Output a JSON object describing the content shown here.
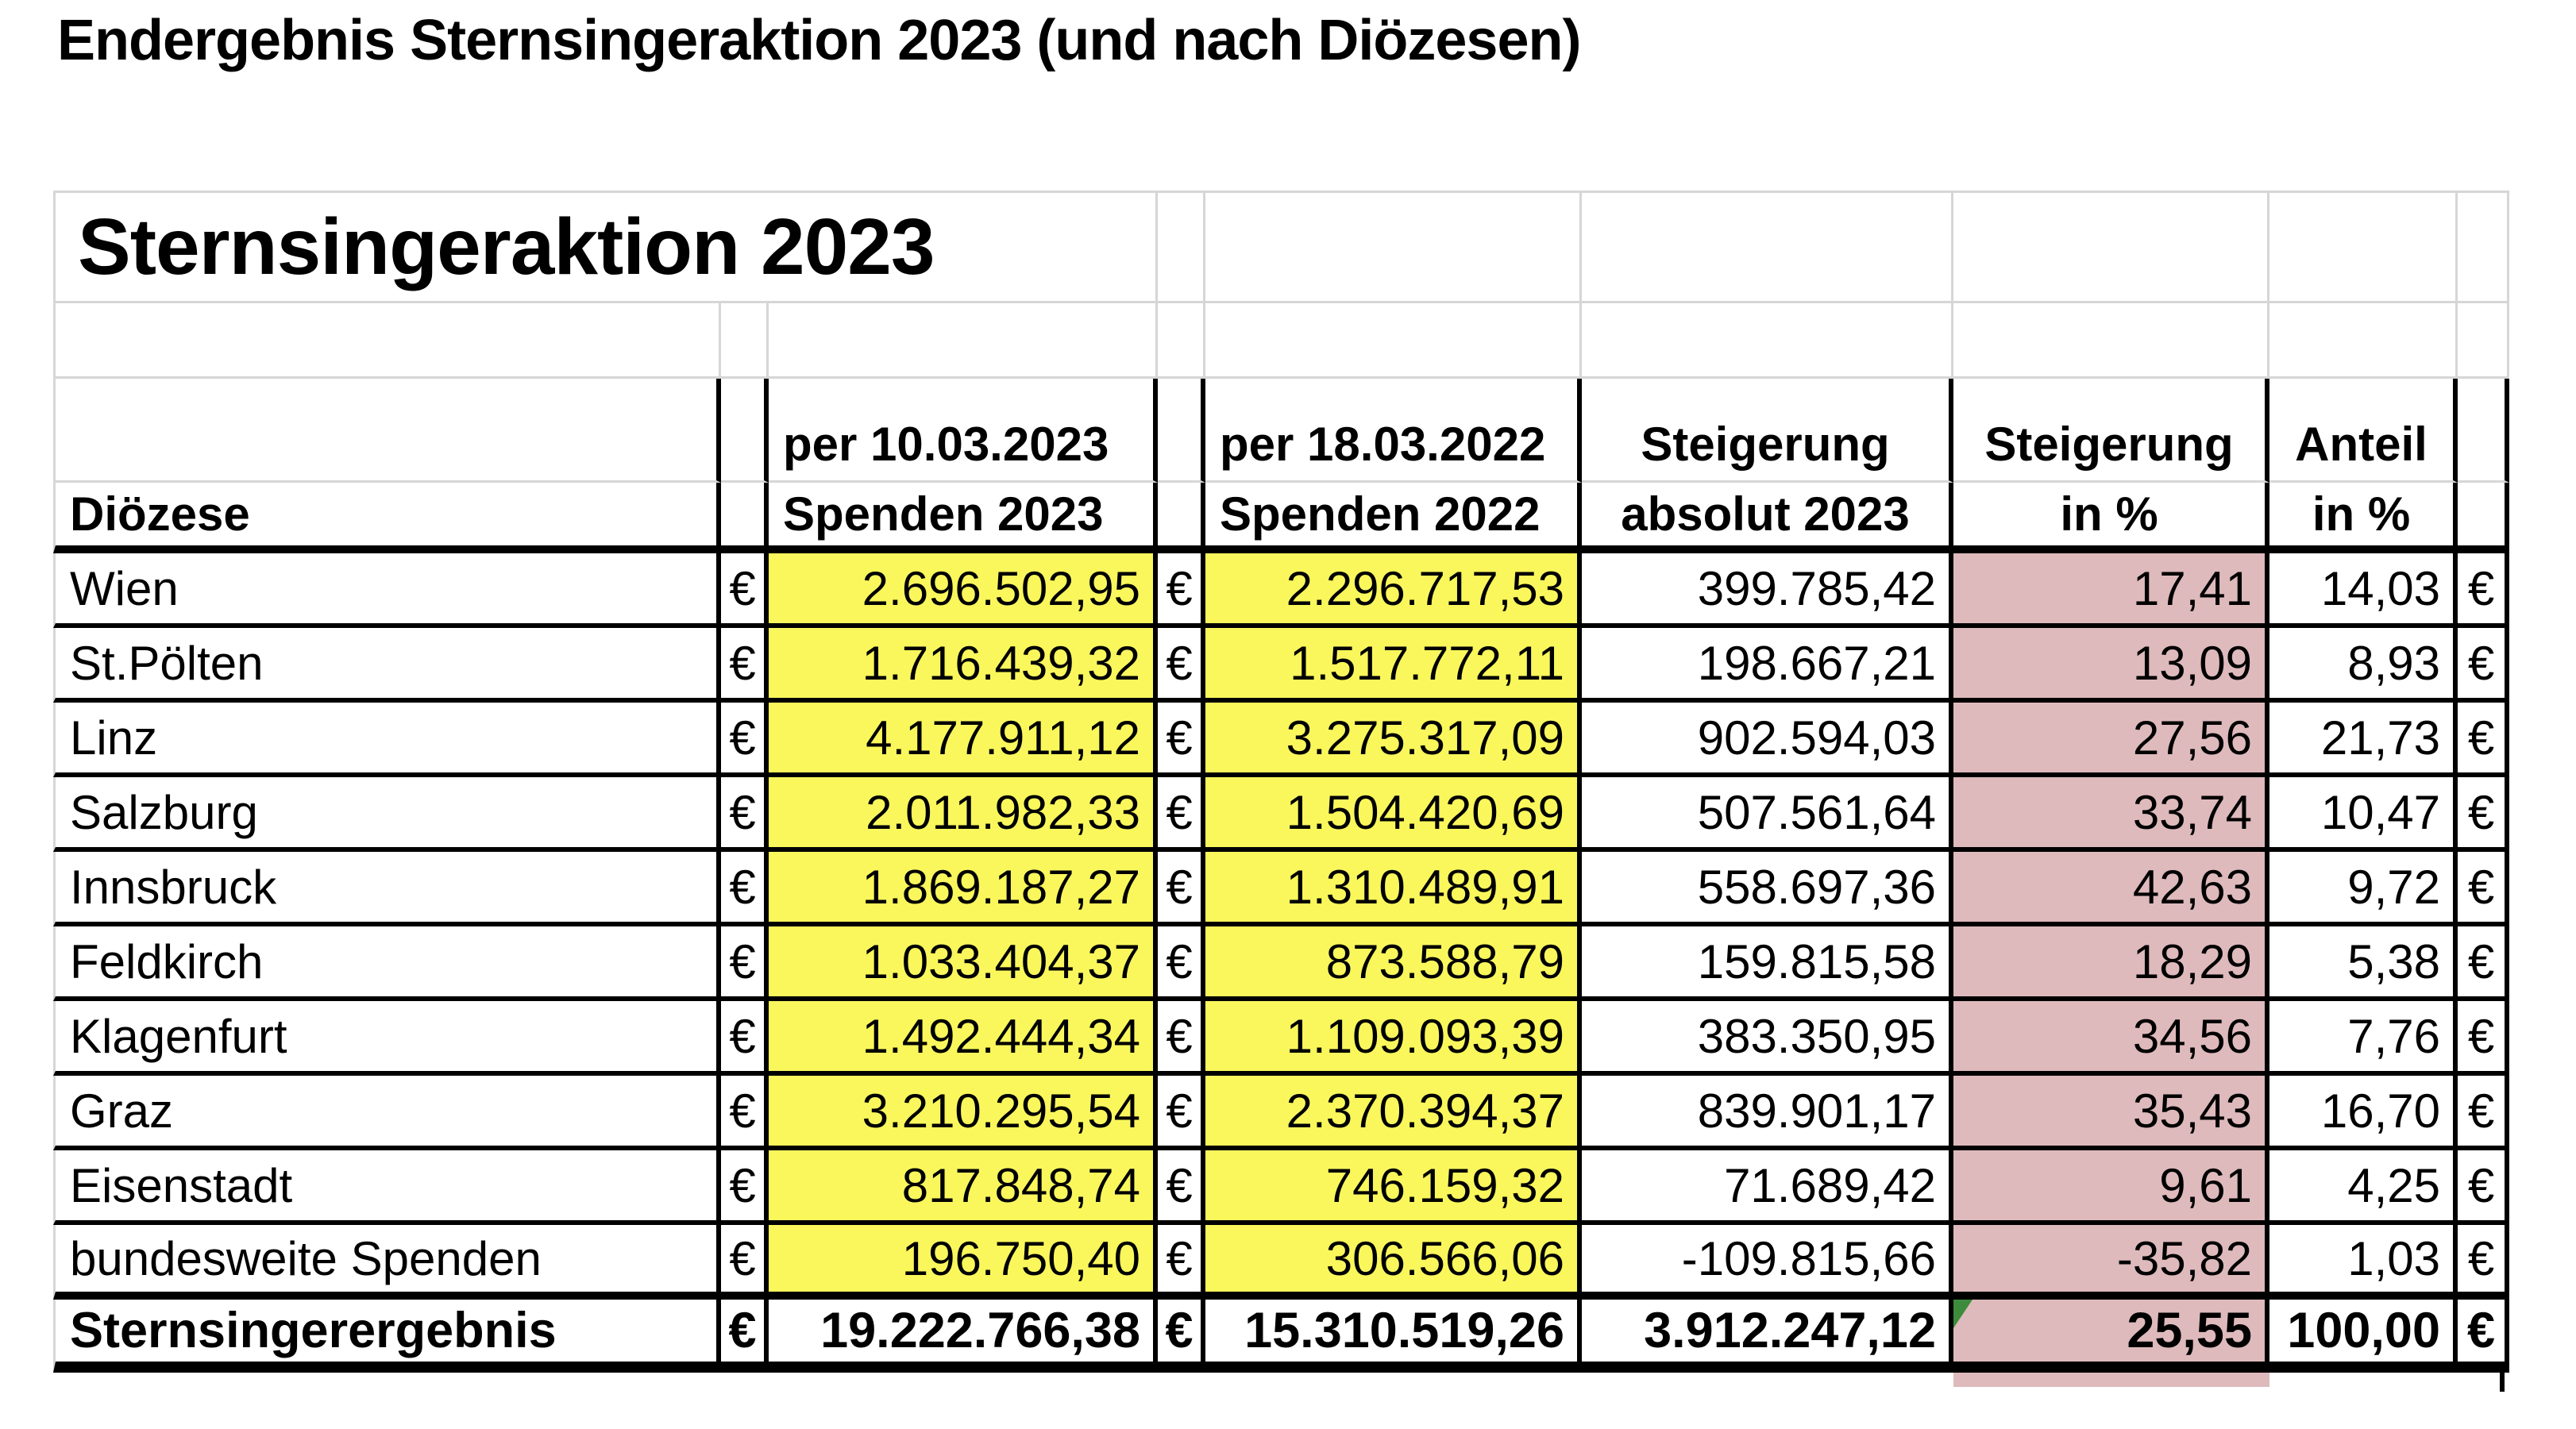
{
  "page_title": "Endergebnis Sternsingeraktion 2023 (und nach Diözesen)",
  "sheet": {
    "title": "Sternsingeraktion 2023",
    "currency": "€",
    "columns": {
      "diocese_header": "Diözese",
      "col2023_line1": "per 10.03.2023",
      "col2023_line2": "Spenden 2023",
      "col2022_line1": "per 18.03.2022",
      "col2022_line2": "Spenden 2022",
      "abs_line1": "Steigerung",
      "abs_line2": "absolut 2023",
      "pct_line1": "Steigerung",
      "pct_line2": "in %",
      "share_line1": "Anteil",
      "share_line2": "in %"
    },
    "rows": [
      {
        "name": "Wien",
        "spenden_2023": "2.696.502,95",
        "spenden_2022": "2.296.717,53",
        "steigerung_absolut": "399.785,42",
        "steigerung_in_prozent": "17,41",
        "anteil_in_prozent": "14,03"
      },
      {
        "name": "St.Pölten",
        "spenden_2023": "1.716.439,32",
        "spenden_2022": "1.517.772,11",
        "steigerung_absolut": "198.667,21",
        "steigerung_in_prozent": "13,09",
        "anteil_in_prozent": "8,93"
      },
      {
        "name": "Linz",
        "spenden_2023": "4.177.911,12",
        "spenden_2022": "3.275.317,09",
        "steigerung_absolut": "902.594,03",
        "steigerung_in_prozent": "27,56",
        "anteil_in_prozent": "21,73"
      },
      {
        "name": "Salzburg",
        "spenden_2023": "2.011.982,33",
        "spenden_2022": "1.504.420,69",
        "steigerung_absolut": "507.561,64",
        "steigerung_in_prozent": "33,74",
        "anteil_in_prozent": "10,47"
      },
      {
        "name": "Innsbruck",
        "spenden_2023": "1.869.187,27",
        "spenden_2022": "1.310.489,91",
        "steigerung_absolut": "558.697,36",
        "steigerung_in_prozent": "42,63",
        "anteil_in_prozent": "9,72"
      },
      {
        "name": "Feldkirch",
        "spenden_2023": "1.033.404,37",
        "spenden_2022": "873.588,79",
        "steigerung_absolut": "159.815,58",
        "steigerung_in_prozent": "18,29",
        "anteil_in_prozent": "5,38"
      },
      {
        "name": "Klagenfurt",
        "spenden_2023": "1.492.444,34",
        "spenden_2022": "1.109.093,39",
        "steigerung_absolut": "383.350,95",
        "steigerung_in_prozent": "34,56",
        "anteil_in_prozent": "7,76"
      },
      {
        "name": "Graz",
        "spenden_2023": "3.210.295,54",
        "spenden_2022": "2.370.394,37",
        "steigerung_absolut": "839.901,17",
        "steigerung_in_prozent": "35,43",
        "anteil_in_prozent": "16,70"
      },
      {
        "name": "Eisenstadt",
        "spenden_2023": "817.848,74",
        "spenden_2022": "746.159,32",
        "steigerung_absolut": "71.689,42",
        "steigerung_in_prozent": "9,61",
        "anteil_in_prozent": "4,25"
      },
      {
        "name": "bundesweite Spenden",
        "spenden_2023": "196.750,40",
        "spenden_2022": "306.566,06",
        "steigerung_absolut": "-109.815,66",
        "steigerung_in_prozent": "-35,82",
        "anteil_in_prozent": "1,03"
      }
    ],
    "total": {
      "name": "Sternsingerergebnis",
      "spenden_2023": "19.222.766,38",
      "spenden_2022": "15.310.519,26",
      "steigerung_absolut": "3.912.247,12",
      "steigerung_in_prozent": "25,55",
      "anteil_in_prozent": "100,00"
    },
    "colors": {
      "highlight_yellow": "#faf75c",
      "highlight_rose": "#debabc",
      "gridline_gray": "#d6d6d6",
      "marker_green": "#3d8c3d"
    }
  }
}
